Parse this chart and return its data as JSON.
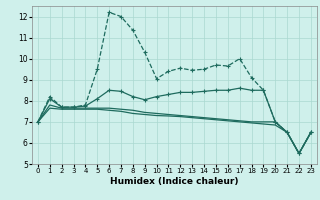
{
  "xlabel": "Humidex (Indice chaleur)",
  "background_color": "#cff0eb",
  "grid_color": "#aad8d0",
  "line_color": "#1e6b5e",
  "xlim": [
    -0.5,
    23.5
  ],
  "ylim": [
    5,
    12.5
  ],
  "yticks": [
    5,
    6,
    7,
    8,
    9,
    10,
    11,
    12
  ],
  "xticks": [
    0,
    1,
    2,
    3,
    4,
    5,
    6,
    7,
    8,
    9,
    10,
    11,
    12,
    13,
    14,
    15,
    16,
    17,
    18,
    19,
    20,
    21,
    22,
    23
  ],
  "line1_x": [
    0,
    1,
    2,
    3,
    4,
    5,
    6,
    7,
    8,
    9,
    10,
    11,
    12,
    13,
    14,
    15,
    16,
    17,
    18,
    19,
    20,
    21,
    22,
    23
  ],
  "line1_y": [
    7.0,
    8.2,
    7.7,
    7.7,
    7.8,
    9.5,
    12.2,
    12.0,
    11.35,
    10.3,
    9.05,
    9.4,
    9.55,
    9.45,
    9.5,
    9.7,
    9.65,
    10.0,
    9.1,
    8.5,
    7.0,
    6.5,
    5.5,
    6.5
  ],
  "line2_x": [
    0,
    1,
    2,
    3,
    4,
    5,
    6,
    7,
    8,
    9,
    10,
    11,
    12,
    13,
    14,
    15,
    16,
    17,
    18,
    19,
    20,
    21,
    22,
    23
  ],
  "line2_y": [
    7.0,
    8.1,
    7.7,
    7.7,
    7.75,
    8.1,
    8.5,
    8.45,
    8.2,
    8.05,
    8.2,
    8.3,
    8.4,
    8.4,
    8.45,
    8.5,
    8.5,
    8.6,
    8.5,
    8.5,
    7.0,
    6.5,
    5.5,
    6.5
  ],
  "line3_x": [
    0,
    1,
    2,
    3,
    4,
    5,
    6,
    7,
    8,
    9,
    10,
    11,
    12,
    13,
    14,
    15,
    16,
    17,
    18,
    19,
    20,
    21,
    22,
    23
  ],
  "line3_y": [
    7.0,
    7.8,
    7.65,
    7.65,
    7.65,
    7.65,
    7.65,
    7.6,
    7.55,
    7.45,
    7.4,
    7.35,
    7.3,
    7.25,
    7.2,
    7.15,
    7.1,
    7.05,
    7.0,
    7.0,
    7.0,
    6.5,
    5.5,
    6.5
  ],
  "line4_x": [
    0,
    1,
    2,
    3,
    4,
    5,
    6,
    7,
    8,
    9,
    10,
    11,
    12,
    13,
    14,
    15,
    16,
    17,
    18,
    19,
    20,
    21,
    22,
    23
  ],
  "line4_y": [
    7.0,
    7.65,
    7.6,
    7.6,
    7.6,
    7.6,
    7.55,
    7.5,
    7.4,
    7.35,
    7.3,
    7.28,
    7.25,
    7.2,
    7.15,
    7.1,
    7.05,
    7.0,
    6.95,
    6.9,
    6.85,
    6.5,
    5.5,
    6.5
  ]
}
